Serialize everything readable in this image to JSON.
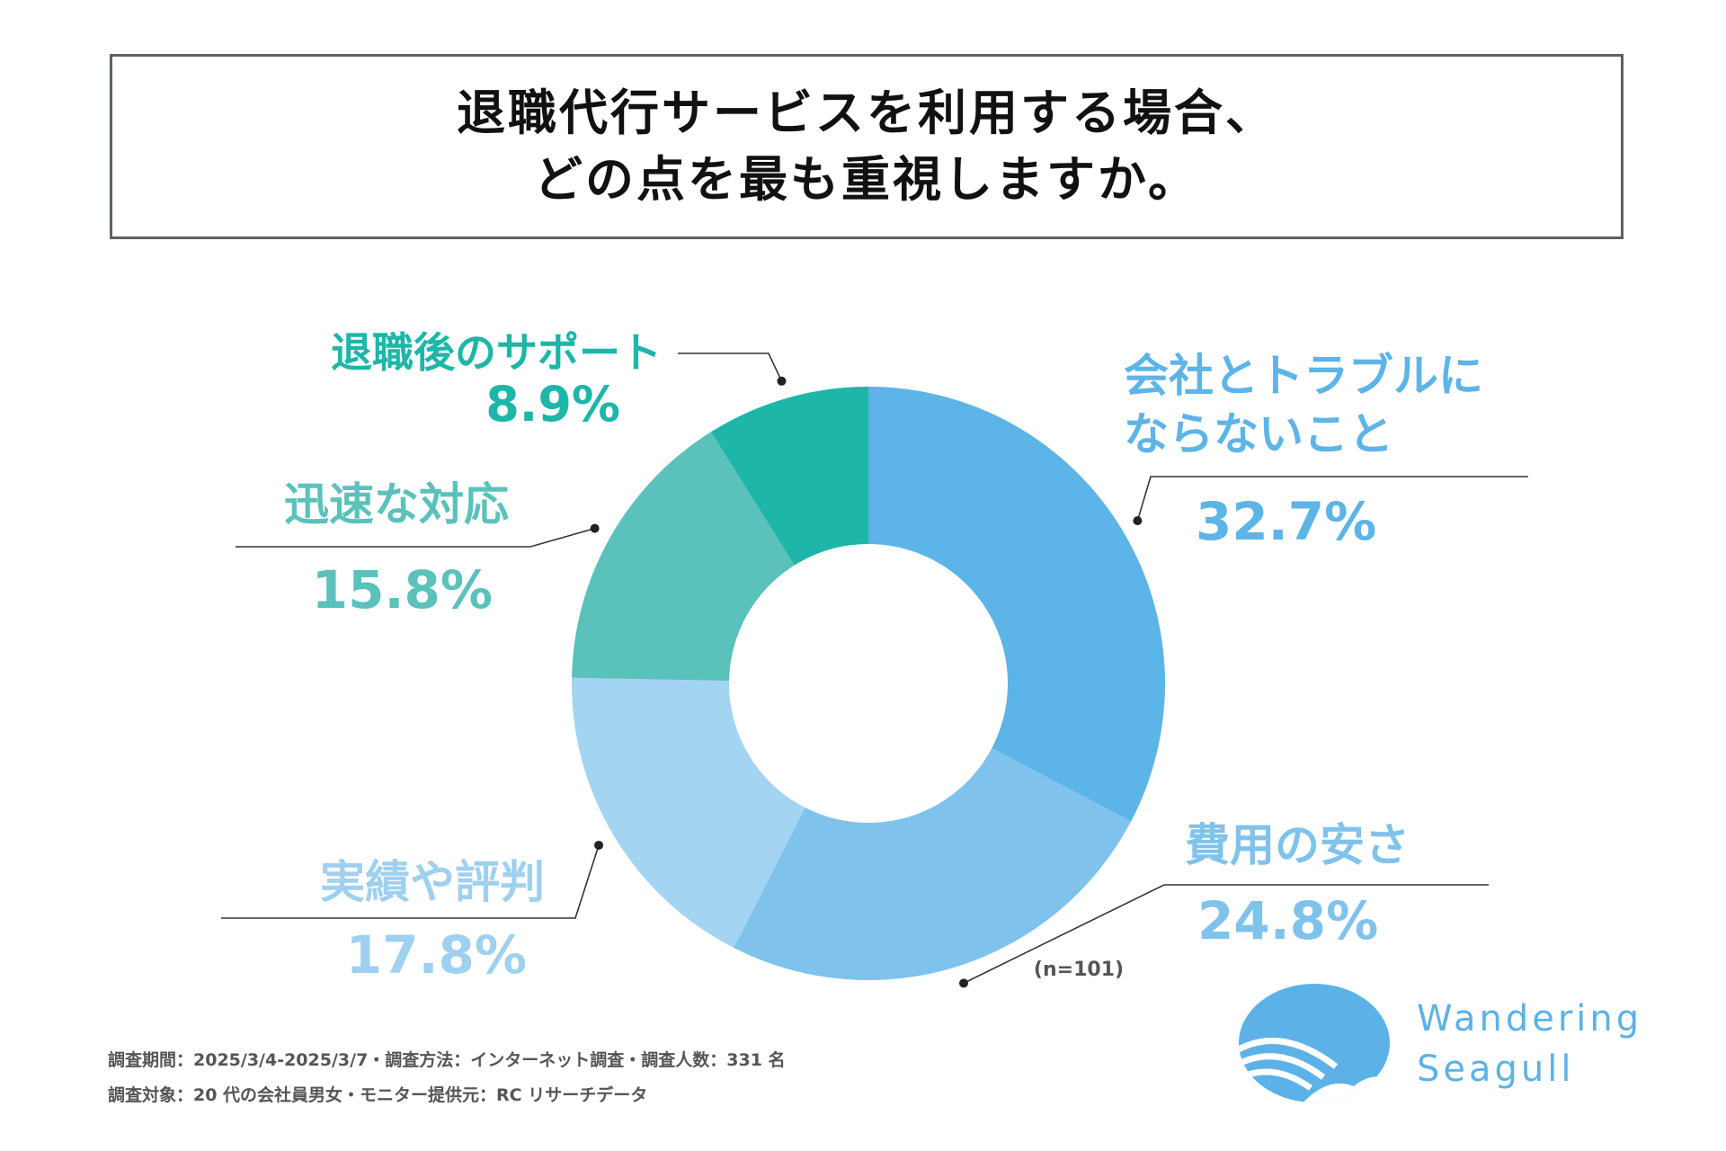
{
  "title": {
    "line1": "退職代行サービスを利用する場合、",
    "line2": "どの点を最も重視しますか。"
  },
  "chart_data": {
    "type": "pie",
    "variant": "donut",
    "categories": [
      "会社とトラブルにならないこと",
      "費用の安さ",
      "実績や評判",
      "迅速な対応",
      "退職後のサポート"
    ],
    "values": [
      32.7,
      24.8,
      17.8,
      15.8,
      8.9
    ],
    "value_labels": [
      "32.7%",
      "24.8%",
      "17.8%",
      "15.8%",
      "8.9%"
    ],
    "label_lines": [
      [
        "会社とトラブルに",
        "ならないこと"
      ],
      [
        "費用の安さ"
      ],
      [
        "実績や評判"
      ],
      [
        "迅速な対応"
      ],
      [
        "退職後のサポート"
      ]
    ],
    "colors": [
      "#5db4e7",
      "#7fc3ec",
      "#a3d4f2",
      "#5bc1bb",
      "#1db6a8"
    ],
    "sample_note": "(n=101)"
  },
  "footer": {
    "line1": "調査期間：2025/3/4-2025/3/7・調査方法：インターネット調査・調査人数：331 名",
    "line2": "調査対象：20 代の会社員男女・モニター提供元：RC リサーチデータ"
  },
  "logo": {
    "line1": "Wandering",
    "line2": "Seagull",
    "color": "#5cb2e6"
  }
}
